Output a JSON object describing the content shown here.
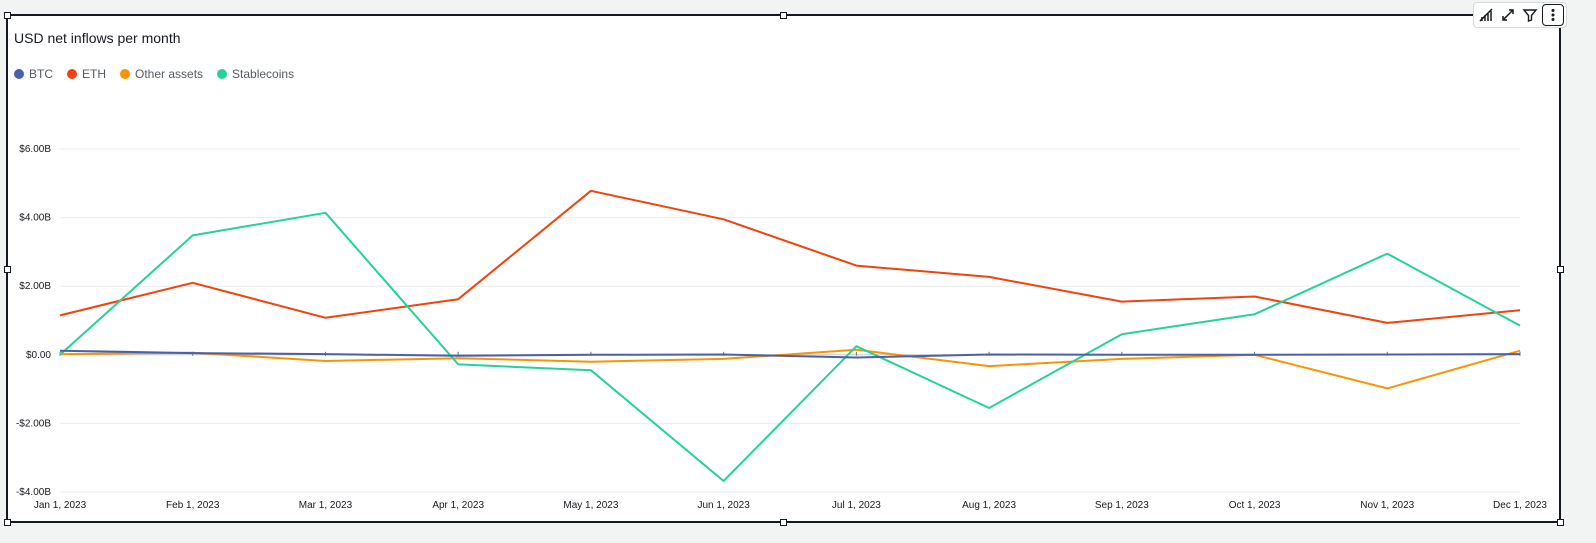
{
  "chart_data": {
    "type": "line",
    "title": "USD net inflows per month",
    "xlabel": "",
    "ylabel": "",
    "categories": [
      "Jan 1, 2023",
      "Feb 1, 2023",
      "Mar 1, 2023",
      "Apr 1, 2023",
      "May 1, 2023",
      "Jun 1, 2023",
      "Jul 1, 2023",
      "Aug 1, 2023",
      "Sep 1, 2023",
      "Oct 1, 2023",
      "Nov 1, 2023",
      "Dec 1, 2023"
    ],
    "ylim": [
      -4,
      6
    ],
    "y_ticks": [
      {
        "value": 6,
        "label": "$6.00B"
      },
      {
        "value": 4,
        "label": "$4.00B"
      },
      {
        "value": 2,
        "label": "$2.00B"
      },
      {
        "value": 0,
        "label": "$0.00"
      },
      {
        "value": -2,
        "label": "-$2.00B"
      },
      {
        "value": -4,
        "label": "-$4.00B"
      }
    ],
    "grid": true,
    "legend_position": "top-left",
    "series": [
      {
        "name": "BTC",
        "color": "#4c5fab",
        "values": [
          0.12,
          0.05,
          0.02,
          -0.03,
          0.0,
          0.01,
          -0.08,
          0.01,
          0.0,
          0.0,
          0.01,
          0.02
        ]
      },
      {
        "name": "ETH",
        "color": "#f1430d",
        "values": [
          1.15,
          2.1,
          1.08,
          1.62,
          4.78,
          3.95,
          2.6,
          2.27,
          1.55,
          1.7,
          0.93,
          1.3
        ]
      },
      {
        "name": "Other assets",
        "color": "#f89405",
        "values": [
          0.02,
          0.06,
          -0.18,
          -0.1,
          -0.2,
          -0.12,
          0.15,
          -0.33,
          -0.12,
          0.0,
          -0.98,
          0.12
        ]
      },
      {
        "name": "Stablecoins",
        "color": "#24d29c",
        "values": [
          0.0,
          3.48,
          4.14,
          -0.28,
          -0.45,
          -3.68,
          0.25,
          -1.55,
          0.6,
          1.18,
          2.95,
          0.85
        ]
      }
    ]
  },
  "toolbar": {
    "icons": [
      "insight-chart-icon",
      "expand-icon",
      "filter-icon",
      "more-menu-icon"
    ]
  }
}
